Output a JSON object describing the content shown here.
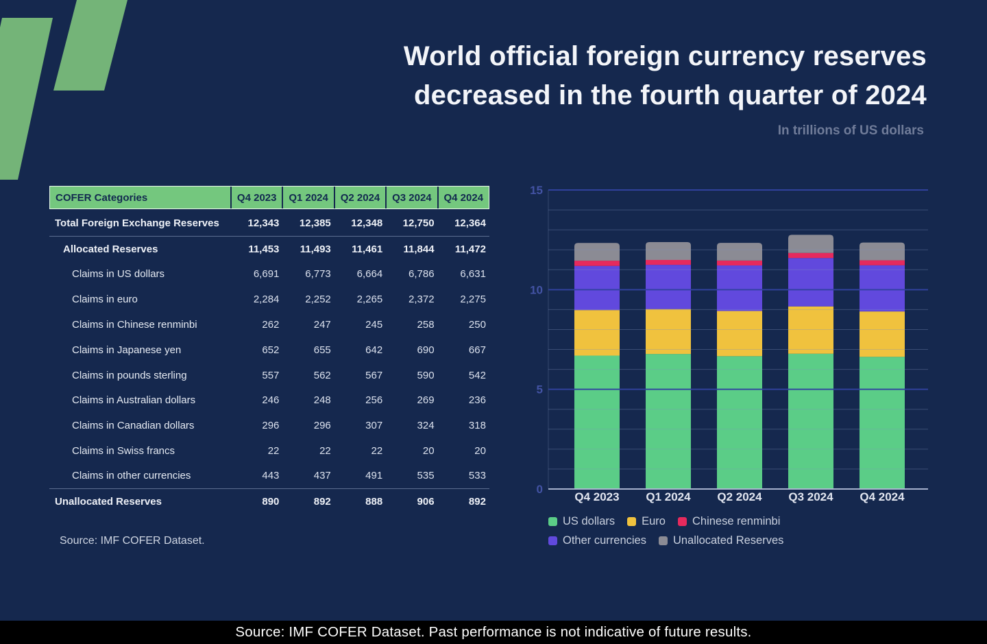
{
  "page": {
    "background": "#15284e"
  },
  "logo": {
    "color": "#74b478"
  },
  "header": {
    "title_line1": "World official foreign currency reserves",
    "title_line2": "decreased in the fourth quarter of 2024",
    "subtitle": "In trillions of US dollars"
  },
  "table": {
    "header": {
      "category_label": "COFER Categories",
      "columns": [
        "Q4 2023",
        "Q1 2024",
        "Q2 2024",
        "Q3 2024",
        "Q4 2024"
      ],
      "bg_color": "#74c77e"
    },
    "rows": [
      {
        "label": "Total Foreign Exchange Reserves",
        "values": [
          "12,343",
          "12,385",
          "12,348",
          "12,750",
          "12,364"
        ],
        "bold": true,
        "indent": 0,
        "divider_below": true
      },
      {
        "label": "Allocated Reserves",
        "values": [
          "11,453",
          "11,493",
          "11,461",
          "11,844",
          "11,472"
        ],
        "bold": true,
        "indent": 1,
        "divider_below": false
      },
      {
        "label": "Claims in US dollars",
        "values": [
          "6,691",
          "6,773",
          "6,664",
          "6,786",
          "6,631"
        ],
        "bold": false,
        "indent": 2,
        "divider_below": false
      },
      {
        "label": "Claims in euro",
        "values": [
          "2,284",
          "2,252",
          "2,265",
          "2,372",
          "2,275"
        ],
        "bold": false,
        "indent": 2,
        "divider_below": false
      },
      {
        "label": "Claims in Chinese renminbi",
        "values": [
          "262",
          "247",
          "245",
          "258",
          "250"
        ],
        "bold": false,
        "indent": 2,
        "divider_below": false
      },
      {
        "label": "Claims in Japanese yen",
        "values": [
          "652",
          "655",
          "642",
          "690",
          "667"
        ],
        "bold": false,
        "indent": 2,
        "divider_below": false
      },
      {
        "label": "Claims in pounds sterling",
        "values": [
          "557",
          "562",
          "567",
          "590",
          "542"
        ],
        "bold": false,
        "indent": 2,
        "divider_below": false
      },
      {
        "label": "Claims in Australian dollars",
        "values": [
          "246",
          "248",
          "256",
          "269",
          "236"
        ],
        "bold": false,
        "indent": 2,
        "divider_below": false
      },
      {
        "label": "Claims in Canadian dollars",
        "values": [
          "296",
          "296",
          "307",
          "324",
          "318"
        ],
        "bold": false,
        "indent": 2,
        "divider_below": false
      },
      {
        "label": "Claims in Swiss francs",
        "values": [
          "22",
          "22",
          "22",
          "20",
          "20"
        ],
        "bold": false,
        "indent": 2,
        "divider_below": false
      },
      {
        "label": "Claims in other currencies",
        "values": [
          "443",
          "437",
          "491",
          "535",
          "533"
        ],
        "bold": false,
        "indent": 2,
        "divider_below": true
      },
      {
        "label": "Unallocated Reserves",
        "values": [
          "890",
          "892",
          "888",
          "906",
          "892"
        ],
        "bold": true,
        "indent": 0,
        "divider_below": false
      }
    ],
    "source": "Source: IMF COFER Dataset."
  },
  "chart_data": {
    "type": "bar",
    "stacked": true,
    "title": "World official foreign currency reserves decreased in the fourth quarter of 2024",
    "units": "trillions of US dollars",
    "categories": [
      "Q4 2023",
      "Q1 2024",
      "Q2 2024",
      "Q3 2024",
      "Q4 2024"
    ],
    "series": [
      {
        "name": "US dollars",
        "color": "#5bcd87",
        "values": [
          6.691,
          6.773,
          6.664,
          6.786,
          6.631
        ]
      },
      {
        "name": "Euro",
        "color": "#f0c23e",
        "values": [
          2.284,
          2.252,
          2.265,
          2.372,
          2.275
        ]
      },
      {
        "name": "Other currencies",
        "color": "#6149dd",
        "values": [
          2.216,
          2.22,
          2.285,
          2.428,
          2.316
        ]
      },
      {
        "name": "Chinese renminbi",
        "color": "#e62a5d",
        "values": [
          0.262,
          0.247,
          0.245,
          0.258,
          0.25
        ]
      },
      {
        "name": "Unallocated Reserves",
        "color": "#8b8b94",
        "values": [
          0.89,
          0.892,
          0.888,
          0.906,
          0.892
        ]
      }
    ],
    "totals": [
      12.343,
      12.385,
      12.348,
      12.75,
      12.364
    ],
    "legend_order": [
      "US dollars",
      "Euro",
      "Chinese renminbi",
      "Other currencies",
      "Unallocated Reserves"
    ],
    "legend_position": "bottom",
    "ylim": [
      0,
      15
    ],
    "yticks": [
      0,
      5,
      10,
      15
    ],
    "minor_grid_step": 1,
    "grid": true
  },
  "footer": {
    "text": "Source: IMF COFER Dataset. Past performance is not indicative of future results."
  }
}
